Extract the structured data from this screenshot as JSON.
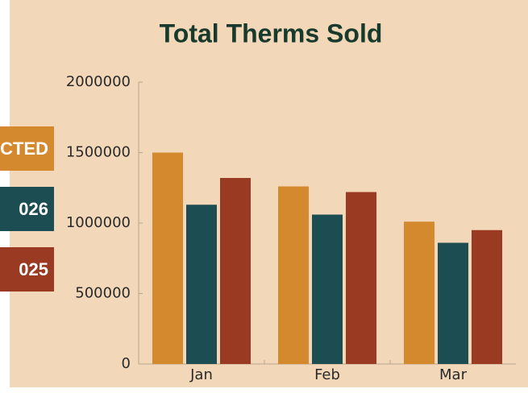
{
  "chart_data": {
    "type": "bar",
    "title": "Total Therms Sold",
    "categories": [
      "Jan",
      "Feb",
      "Mar"
    ],
    "series": [
      {
        "name": "ECTED",
        "color": "#d4892e",
        "values": [
          1500000,
          1260000,
          1010000
        ]
      },
      {
        "name": "026",
        "color": "#1b4d52",
        "values": [
          1130000,
          1060000,
          860000
        ]
      },
      {
        "name": "025",
        "color": "#9a3a22",
        "values": [
          1320000,
          1220000,
          950000
        ]
      }
    ],
    "ylim": [
      0,
      2000000
    ],
    "yticks": [
      0,
      500000,
      1000000,
      1500000,
      2000000
    ],
    "grid": false
  }
}
